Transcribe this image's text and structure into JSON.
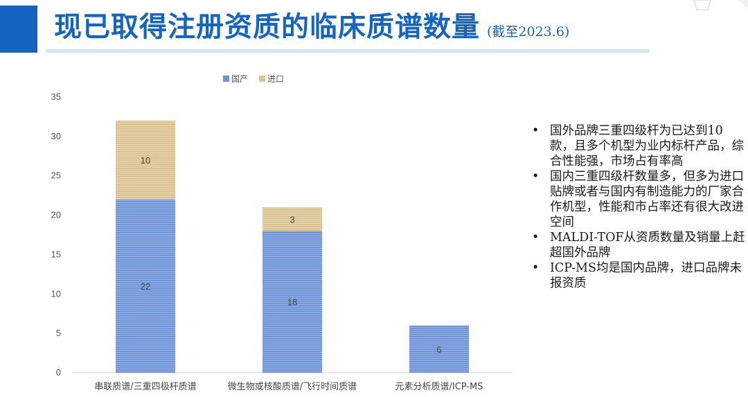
{
  "title": {
    "main": "现已取得注册资质的临床质谱数量",
    "sub": "(截至2023.6)"
  },
  "colors": {
    "accent": "#1565c0",
    "domestic": "#6f95d8",
    "imported": "#dcc393"
  },
  "bullets": [
    "国外品牌三重四级杆为已达到10款，且多个机型为业内标杆产品，综合性能强，市场占有率高",
    "国内三重四级杆数量多，但多为进口贴牌或者与国内有制造能力的厂家合作机型，性能和市占率还有很大改进空间",
    "MALDI-TOF从资质数量及销量上赶超国外品牌",
    "ICP-MS均是国内品牌，进口品牌未报资质"
  ],
  "chart_data": {
    "type": "bar",
    "stacked": true,
    "categories": [
      "串联质谱/三重四极杆质谱",
      "微生物或核酸质谱/飞行时间质谱",
      "元素分析质谱/ICP-MS"
    ],
    "series": [
      {
        "name": "国产",
        "values": [
          22,
          18,
          6
        ],
        "color": "#6f95d8"
      },
      {
        "name": "进口",
        "values": [
          10,
          3,
          0
        ],
        "color": "#dcc393"
      }
    ],
    "ylim": [
      0,
      35
    ],
    "yticks": [
      0,
      5,
      10,
      15,
      20,
      25,
      30,
      35
    ],
    "legend_position": "top",
    "grid": false
  }
}
